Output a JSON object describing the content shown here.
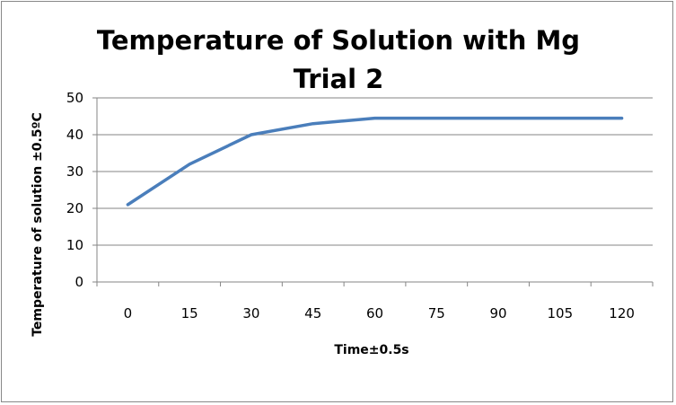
{
  "chart_data": {
    "type": "line",
    "title_line1": "Temperature of Solution with Mg",
    "title_line2": "Trial 2",
    "xlabel": "Time±0.5s",
    "ylabel": "Temperature of solution ±0.5ºC",
    "categories": [
      "0",
      "15",
      "30",
      "45",
      "60",
      "75",
      "90",
      "105",
      "120"
    ],
    "y_ticks": [
      "0",
      "10",
      "20",
      "30",
      "40",
      "50"
    ],
    "ylim": [
      0,
      50
    ],
    "grid": true,
    "legend": "none",
    "series": [
      {
        "values": [
          21,
          32,
          40,
          43,
          44.5,
          44.5,
          44.5,
          44.5,
          44.5
        ],
        "color": "#4a7ebb"
      }
    ]
  }
}
